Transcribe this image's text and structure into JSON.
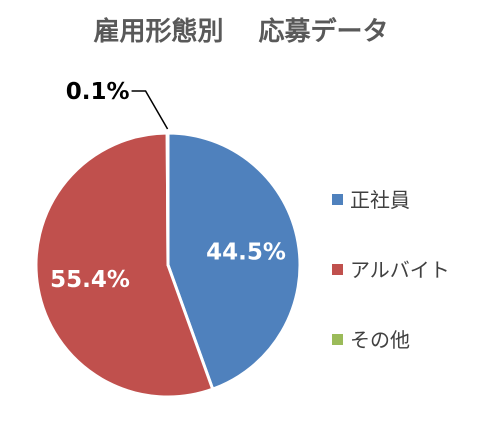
{
  "chart_data": {
    "type": "pie",
    "title": "雇用形態別　 応募データ",
    "categories": [
      "正社員",
      "アルバイト",
      "その他"
    ],
    "values": [
      44.5,
      55.4,
      0.1
    ],
    "data_labels": [
      "44.5%",
      "55.4%",
      "0.1%"
    ],
    "colors": [
      "#4F81BD",
      "#C0504D",
      "#9BBB59"
    ],
    "start_angle_deg": 0,
    "direction": "clockwise",
    "legend": {
      "position": "right",
      "items": [
        "正社員",
        "アルバイト",
        "その他"
      ]
    }
  }
}
